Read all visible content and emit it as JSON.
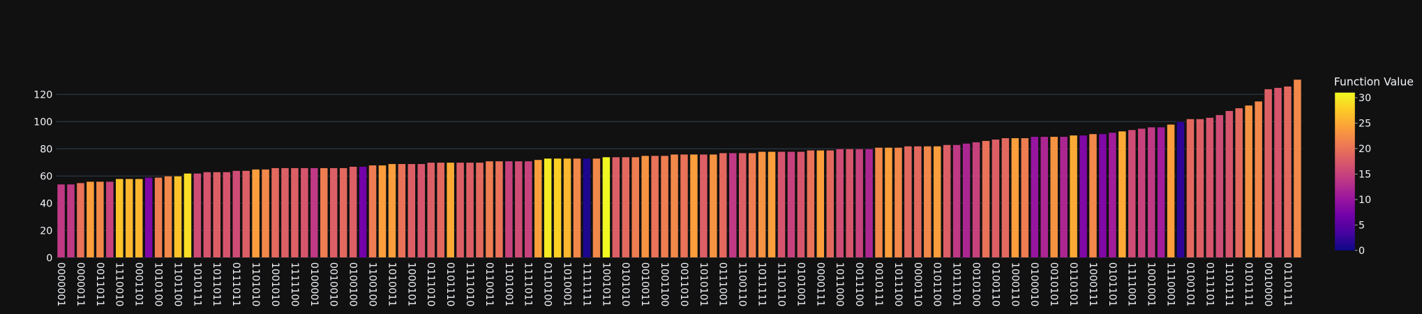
{
  "chart_data": {
    "type": "bar",
    "categories": [
      "0000001",
      null,
      "0000011",
      null,
      "0011011",
      null,
      "1110010",
      null,
      "0001101",
      null,
      "1010100",
      null,
      "1101100",
      null,
      "1010111",
      null,
      "1011011",
      null,
      "0111011",
      null,
      "1101010",
      null,
      "1001010",
      null,
      "1111100",
      null,
      "0100001",
      null,
      "0010010",
      null,
      "0100100",
      null,
      "1100100",
      null,
      "1010011",
      null,
      "1000101",
      null,
      "0111010",
      null,
      "0101110",
      null,
      "1111010",
      null,
      "0110011",
      null,
      "1101001",
      null,
      "1111011",
      null,
      "0110100",
      null,
      "1010001",
      null,
      "1111111",
      null,
      "1001011",
      null,
      "0101010",
      null,
      "0010011",
      null,
      "1001100",
      null,
      "0011010",
      null,
      "1010101",
      null,
      "0111001",
      null,
      "1100110",
      null,
      "1011111",
      null,
      "1110110",
      null,
      "0101001",
      null,
      "0000111",
      null,
      "1011000",
      null,
      "0011100",
      null,
      "0010111",
      null,
      "1011100",
      null,
      "0000110",
      null,
      "0101100",
      null,
      "1011101",
      null,
      "0010100",
      null,
      "0100110",
      null,
      "1000110",
      null,
      "0100010",
      null,
      "0010101",
      null,
      "0110101",
      null,
      "1000111",
      null,
      "0101101",
      null,
      "1111001",
      null,
      "1001001",
      null,
      "1110001",
      null,
      "0100101",
      null,
      "0111101",
      null,
      "1101111",
      null,
      "0101111",
      null,
      "0010000",
      null,
      "0110111",
      null
    ],
    "values": [
      54,
      54,
      55,
      56,
      56,
      56,
      58,
      58,
      58,
      59,
      59,
      60,
      60,
      62,
      62,
      63,
      63,
      63,
      64,
      64,
      65,
      65,
      66,
      66,
      66,
      66,
      66,
      66,
      66,
      66,
      67,
      67,
      68,
      68,
      69,
      69,
      69,
      69,
      70,
      70,
      70,
      70,
      70,
      70,
      71,
      71,
      71,
      71,
      71,
      72,
      73,
      73,
      73,
      73,
      73,
      73,
      74,
      74,
      74,
      74,
      75,
      75,
      75,
      76,
      76,
      76,
      76,
      76,
      77,
      77,
      77,
      77,
      78,
      78,
      78,
      78,
      78,
      79,
      79,
      79,
      80,
      80,
      80,
      80,
      81,
      81,
      81,
      82,
      82,
      82,
      82,
      83,
      83,
      84,
      85,
      86,
      87,
      88,
      88,
      88,
      89,
      89,
      89,
      89,
      90,
      90,
      91,
      91,
      92,
      93,
      94,
      95,
      96,
      96,
      98,
      100,
      102,
      102,
      103,
      105,
      108,
      110,
      112,
      115,
      124,
      125,
      126,
      131
    ],
    "color_values": [
      14,
      14,
      20,
      24,
      22,
      15,
      27,
      26,
      26,
      8,
      21,
      22,
      27,
      29,
      16,
      17,
      18,
      17,
      16,
      18,
      24,
      22,
      19,
      18,
      18,
      17,
      14,
      21,
      18,
      19,
      18,
      7,
      21,
      24,
      24,
      20,
      18,
      17,
      18,
      19,
      25,
      18,
      18,
      19,
      21,
      20,
      15,
      16,
      15,
      24,
      30,
      28,
      26,
      22,
      1,
      22,
      31,
      18,
      19,
      21,
      23,
      20,
      21,
      22,
      20,
      24,
      18,
      23,
      19,
      14,
      18,
      21,
      23,
      24,
      17,
      15,
      17,
      20,
      24,
      19,
      16,
      17,
      15,
      12,
      22,
      24,
      22,
      19,
      19,
      22,
      24,
      18,
      14,
      12,
      15,
      20,
      18,
      19,
      24,
      21,
      10,
      12,
      23,
      12,
      25,
      8,
      22,
      8,
      11,
      25,
      16,
      15,
      14,
      11,
      24,
      2,
      19,
      18,
      17,
      16,
      17,
      19,
      23,
      22,
      18,
      17,
      19,
      22
    ],
    "colorscale": [
      "#0d0887",
      "#46039f",
      "#7201a8",
      "#9c179e",
      "#bd3786",
      "#d8576b",
      "#ed7953",
      "#fb9f3a",
      "#fdca26",
      "#f0f921"
    ],
    "colorbar_title": "Function Value",
    "clim": [
      0,
      31
    ],
    "cticks": [
      0,
      5,
      10,
      15,
      20,
      25,
      30
    ],
    "ylim": [
      0,
      138
    ],
    "yticks": [
      0,
      20,
      40,
      60,
      80,
      100,
      120
    ],
    "grid": true
  }
}
